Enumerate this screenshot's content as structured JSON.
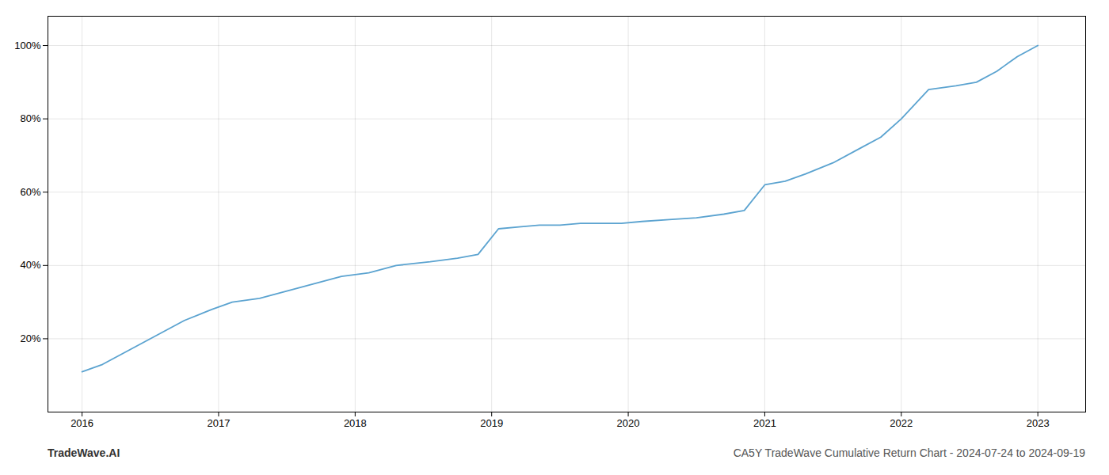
{
  "chart_data": {
    "type": "line",
    "title": "CA5Y TradeWave Cumulative Return Chart - 2024-07-24 to 2024-09-19",
    "caption": "TradeWave.AI",
    "x": [
      2016.0,
      2016.15,
      2016.35,
      2016.55,
      2016.75,
      2016.95,
      2017.1,
      2017.3,
      2017.5,
      2017.7,
      2017.9,
      2018.1,
      2018.3,
      2018.55,
      2018.75,
      2018.9,
      2019.05,
      2019.2,
      2019.35,
      2019.5,
      2019.65,
      2019.8,
      2019.95,
      2020.1,
      2020.3,
      2020.5,
      2020.7,
      2020.85,
      2021.0,
      2021.15,
      2021.3,
      2021.5,
      2021.7,
      2021.85,
      2022.0,
      2022.2,
      2022.4,
      2022.55,
      2022.7,
      2022.85,
      2023.0
    ],
    "values": [
      11,
      13,
      17,
      21,
      25,
      28,
      30,
      31,
      33,
      35,
      37,
      38,
      40,
      41,
      42,
      43,
      50,
      50.5,
      51,
      51,
      51.5,
      51.5,
      51.5,
      52,
      52.5,
      53,
      54,
      55,
      62,
      63,
      65,
      68,
      72,
      75,
      80,
      88,
      89,
      90,
      93,
      97,
      100
    ],
    "color": "#5ba3d0",
    "xlim": [
      2015.75,
      2023.35
    ],
    "ylim": [
      0,
      108
    ],
    "xticks": [
      2016,
      2017,
      2018,
      2019,
      2020,
      2021,
      2022,
      2023
    ],
    "yticks": [
      {
        "value": 20,
        "label": "20%"
      },
      {
        "value": 40,
        "label": "40%"
      },
      {
        "value": 60,
        "label": "60%"
      },
      {
        "value": 80,
        "label": "80%"
      },
      {
        "value": 100,
        "label": "100%"
      }
    ],
    "grid": true
  }
}
